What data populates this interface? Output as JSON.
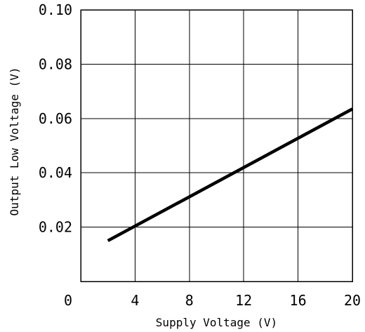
{
  "chart_data": {
    "type": "line",
    "title": "",
    "xlabel": "Supply Voltage (V)",
    "ylabel": "Output Low Voltage (V)",
    "xlim": [
      0,
      20
    ],
    "ylim": [
      0,
      0.1
    ],
    "x_ticks": [
      0,
      4,
      8,
      12,
      16,
      20
    ],
    "y_ticks": [
      0.02,
      0.04,
      0.06,
      0.08,
      0.1
    ],
    "x_tick_labels": [
      "0",
      "4",
      "8",
      "12",
      "16",
      "20"
    ],
    "y_tick_labels": [
      "0.02",
      "0.04",
      "0.06",
      "0.08",
      "0.10"
    ],
    "grid": true,
    "legend": "none",
    "series": [
      {
        "color": "#000000",
        "points": [
          {
            "x": 2,
            "y": 0.015
          },
          {
            "x": 20,
            "y": 0.0635
          }
        ]
      }
    ]
  }
}
